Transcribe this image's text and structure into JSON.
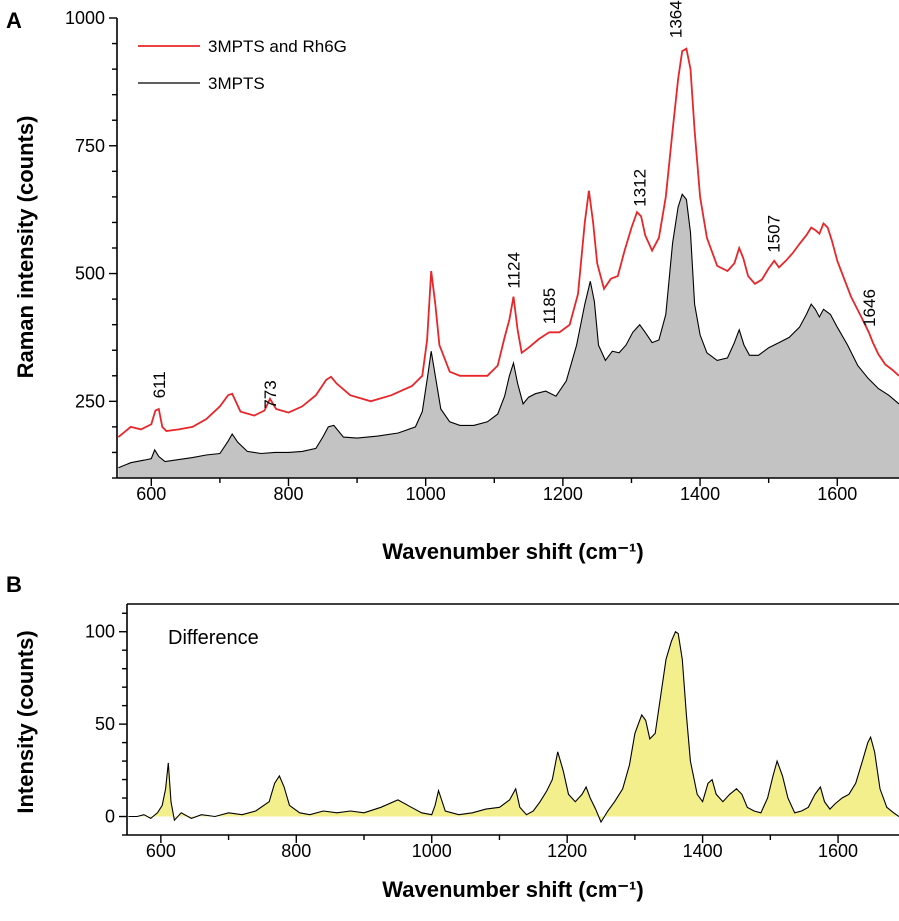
{
  "chart_data": [
    {
      "panel": "A",
      "type": "line",
      "xlabel": "Wavenumber shift (cm⁻¹)",
      "ylabel": "Raman intensity (counts)",
      "xlim": [
        550,
        1690
      ],
      "ylim": [
        100,
        1000
      ],
      "xticks": [
        600,
        800,
        1000,
        1200,
        1400,
        1600
      ],
      "yticks": [
        250,
        500,
        750,
        1000
      ],
      "legend_position": "top-left",
      "peak_labels": [
        {
          "text": "611",
          "x": 611,
          "y": 240
        },
        {
          "text": "773",
          "x": 773,
          "y": 220
        },
        {
          "text": "1124",
          "x": 1128,
          "y": 455
        },
        {
          "text": "1185",
          "x": 1180,
          "y": 385
        },
        {
          "text": "1312",
          "x": 1312,
          "y": 615
        },
        {
          "text": "1364",
          "x": 1364,
          "y": 945
        },
        {
          "text": "1507",
          "x": 1507,
          "y": 525
        },
        {
          "text": "1646",
          "x": 1646,
          "y": 380
        }
      ],
      "series": [
        {
          "name": "3MPTS and Rh6G",
          "color": "#e8262a",
          "style": "line",
          "x": [
            552,
            570,
            585,
            600,
            606,
            611,
            616,
            622,
            640,
            660,
            680,
            700,
            712,
            718,
            730,
            750,
            765,
            773,
            782,
            800,
            820,
            840,
            855,
            862,
            870,
            890,
            920,
            950,
            980,
            995,
            1002,
            1008,
            1014,
            1020,
            1035,
            1050,
            1070,
            1090,
            1105,
            1115,
            1122,
            1128,
            1134,
            1140,
            1150,
            1165,
            1180,
            1195,
            1210,
            1222,
            1232,
            1238,
            1244,
            1250,
            1260,
            1270,
            1280,
            1290,
            1300,
            1308,
            1314,
            1320,
            1330,
            1340,
            1350,
            1360,
            1368,
            1374,
            1380,
            1386,
            1392,
            1400,
            1410,
            1425,
            1440,
            1450,
            1457,
            1463,
            1470,
            1480,
            1490,
            1500,
            1508,
            1515,
            1525,
            1535,
            1545,
            1555,
            1562,
            1568,
            1574,
            1580,
            1586,
            1592,
            1600,
            1610,
            1620,
            1635,
            1646,
            1652,
            1660,
            1670,
            1680,
            1690
          ],
          "y": [
            180,
            200,
            195,
            205,
            232,
            235,
            200,
            192,
            195,
            200,
            215,
            240,
            262,
            265,
            230,
            222,
            232,
            255,
            235,
            228,
            240,
            262,
            292,
            298,
            285,
            262,
            250,
            262,
            280,
            300,
            370,
            505,
            440,
            360,
            308,
            300,
            300,
            300,
            320,
            375,
            410,
            455,
            390,
            345,
            355,
            372,
            385,
            385,
            400,
            460,
            600,
            662,
            600,
            520,
            470,
            490,
            495,
            545,
            590,
            620,
            612,
            575,
            545,
            570,
            650,
            780,
            880,
            935,
            940,
            900,
            780,
            650,
            570,
            515,
            505,
            520,
            550,
            530,
            495,
            480,
            488,
            510,
            525,
            512,
            525,
            540,
            558,
            575,
            590,
            585,
            578,
            598,
            590,
            565,
            525,
            490,
            455,
            415,
            385,
            365,
            342,
            322,
            312,
            300
          ]
        },
        {
          "name": "3MPTS",
          "color": "#000000",
          "fill": "#c3c3c3",
          "style": "filled-line",
          "x": [
            552,
            570,
            590,
            600,
            605,
            611,
            620,
            640,
            660,
            680,
            700,
            712,
            718,
            726,
            740,
            760,
            780,
            800,
            820,
            840,
            850,
            858,
            866,
            880,
            900,
            930,
            960,
            985,
            995,
            1003,
            1008,
            1014,
            1022,
            1035,
            1050,
            1070,
            1090,
            1105,
            1115,
            1122,
            1128,
            1134,
            1142,
            1150,
            1160,
            1175,
            1190,
            1205,
            1220,
            1232,
            1240,
            1246,
            1252,
            1262,
            1272,
            1282,
            1292,
            1302,
            1312,
            1320,
            1330,
            1340,
            1350,
            1360,
            1368,
            1374,
            1380,
            1386,
            1392,
            1400,
            1410,
            1425,
            1440,
            1450,
            1457,
            1464,
            1472,
            1485,
            1500,
            1515,
            1530,
            1545,
            1555,
            1562,
            1568,
            1574,
            1580,
            1590,
            1600,
            1615,
            1630,
            1645,
            1660,
            1675,
            1690
          ],
          "y": [
            120,
            130,
            135,
            138,
            155,
            142,
            132,
            136,
            140,
            145,
            148,
            172,
            186,
            170,
            152,
            148,
            150,
            150,
            152,
            158,
            180,
            200,
            203,
            180,
            178,
            182,
            188,
            200,
            230,
            300,
            348,
            300,
            235,
            210,
            203,
            203,
            210,
            225,
            260,
            300,
            325,
            285,
            245,
            258,
            265,
            270,
            260,
            290,
            360,
            440,
            485,
            445,
            360,
            330,
            348,
            345,
            360,
            385,
            400,
            385,
            365,
            370,
            420,
            560,
            630,
            655,
            645,
            580,
            440,
            380,
            345,
            330,
            335,
            365,
            390,
            360,
            340,
            340,
            355,
            365,
            375,
            395,
            420,
            440,
            430,
            415,
            430,
            420,
            395,
            360,
            320,
            295,
            275,
            262,
            245
          ]
        }
      ]
    },
    {
      "panel": "B",
      "type": "area",
      "xlabel": "Wavenumber shift (cm⁻¹)",
      "ylabel": "Intensity (counts)",
      "annotation": "Difference",
      "xlim": [
        550,
        1690
      ],
      "ylim": [
        -10,
        115
      ],
      "xticks": [
        600,
        800,
        1000,
        1200,
        1400,
        1600
      ],
      "yticks": [
        0,
        50,
        100
      ],
      "series": [
        {
          "name": "Difference",
          "color": "#000000",
          "fill": "#f2ef8c",
          "x": [
            552,
            565,
            575,
            585,
            595,
            602,
            607,
            611,
            615,
            620,
            630,
            645,
            660,
            680,
            700,
            720,
            740,
            760,
            768,
            775,
            782,
            790,
            805,
            820,
            840,
            860,
            880,
            900,
            925,
            950,
            970,
            985,
            1000,
            1005,
            1010,
            1020,
            1040,
            1060,
            1080,
            1100,
            1115,
            1124,
            1130,
            1140,
            1150,
            1160,
            1170,
            1178,
            1186,
            1194,
            1202,
            1212,
            1222,
            1228,
            1234,
            1242,
            1250,
            1260,
            1270,
            1282,
            1292,
            1300,
            1310,
            1316,
            1322,
            1330,
            1338,
            1346,
            1354,
            1360,
            1364,
            1370,
            1376,
            1382,
            1392,
            1400,
            1408,
            1414,
            1420,
            1430,
            1440,
            1450,
            1458,
            1466,
            1476,
            1486,
            1496,
            1504,
            1510,
            1518,
            1526,
            1536,
            1546,
            1556,
            1566,
            1574,
            1580,
            1588,
            1596,
            1606,
            1616,
            1626,
            1636,
            1644,
            1648,
            1654,
            1662,
            1672,
            1682,
            1690
          ],
          "y": [
            0,
            0,
            1,
            -1,
            2,
            6,
            15,
            29,
            8,
            -2,
            2,
            -1,
            1,
            0,
            2,
            1,
            3,
            8,
            18,
            22,
            16,
            6,
            2,
            1,
            3,
            2,
            3,
            2,
            5,
            9,
            5,
            2,
            1,
            6,
            14,
            3,
            1,
            2,
            4,
            5,
            9,
            15,
            5,
            1,
            3,
            8,
            14,
            20,
            35,
            25,
            12,
            8,
            12,
            16,
            10,
            4,
            -3,
            3,
            8,
            15,
            28,
            45,
            55,
            52,
            42,
            45,
            65,
            85,
            95,
            100,
            99,
            85,
            55,
            30,
            12,
            8,
            18,
            20,
            12,
            8,
            12,
            15,
            12,
            5,
            3,
            2,
            10,
            22,
            30,
            22,
            10,
            2,
            3,
            5,
            12,
            16,
            8,
            4,
            7,
            10,
            12,
            18,
            30,
            40,
            43,
            35,
            15,
            5,
            2,
            0
          ]
        }
      ]
    }
  ]
}
